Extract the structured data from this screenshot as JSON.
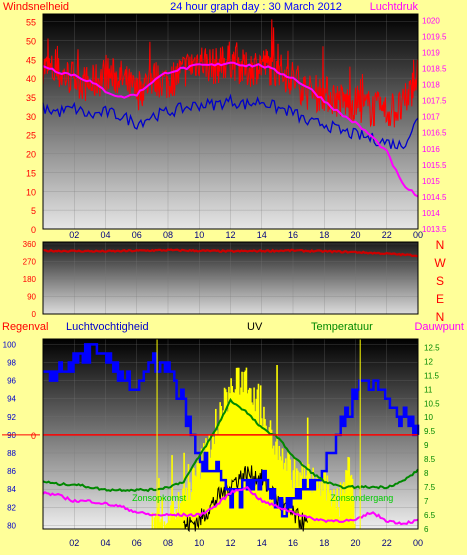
{
  "colors": {
    "background": "#ffff99",
    "wind_gust": "#ff0000",
    "wind_avg": "#0000cc",
    "pressure": "#ff00ff",
    "direction": "#cc0000",
    "humidity": "#0000ff",
    "uv": "#ffff00",
    "temperature": "#008800",
    "dewpoint": "#ff00ff",
    "rain": "#ff0000",
    "solar": "#000000"
  },
  "chart_data": [
    {
      "type": "line",
      "title": "24 hour graph day : 30 March 2012",
      "left_label": "Windsnelheid",
      "right_label": "Luchtdruk",
      "x_tick_labels": [
        "02",
        "04",
        "06",
        "08",
        "10",
        "12",
        "14",
        "16",
        "18",
        "20",
        "22",
        "00"
      ],
      "y_left_ticks": [
        "0",
        "5",
        "10",
        "15",
        "20",
        "25",
        "30",
        "35",
        "40",
        "45",
        "50",
        "55"
      ],
      "y_right_ticks": [
        "1013.5",
        "1014",
        "1014.5",
        "1015",
        "1015.5",
        "1016",
        "1016.5",
        "1017",
        "1017.5",
        "1018",
        "1018.5",
        "1019",
        "1019.5",
        "1020"
      ],
      "ylim_left": [
        0,
        57
      ],
      "ylim_right": [
        1013.5,
        1020.2
      ],
      "xlim": [
        0,
        24
      ],
      "x": [
        0,
        1,
        2,
        3,
        4,
        5,
        6,
        7,
        8,
        9,
        10,
        11,
        12,
        13,
        14,
        15,
        16,
        17,
        18,
        19,
        20,
        21,
        22,
        23,
        24
      ],
      "series": [
        {
          "axis": "left",
          "role": "gust",
          "values": [
            43,
            41,
            40,
            38,
            41,
            40,
            36,
            40,
            39,
            42,
            45,
            43,
            45,
            42,
            44,
            42,
            40,
            36,
            36,
            34,
            33,
            32,
            31,
            32,
            41
          ],
          "noise": 5
        },
        {
          "axis": "left",
          "role": "average",
          "values": [
            32,
            31,
            32,
            30,
            31,
            30,
            28,
            30,
            31,
            32,
            33,
            33,
            34,
            33,
            34,
            32,
            31,
            28,
            28,
            26,
            25,
            24,
            23,
            22,
            29
          ],
          "noise": 1.6
        },
        {
          "axis": "right",
          "role": "pressure",
          "values": [
            1018.6,
            1018.4,
            1018.3,
            1018.1,
            1017.8,
            1017.6,
            1017.7,
            1018.1,
            1018.4,
            1018.5,
            1018.6,
            1018.6,
            1018.7,
            1018.6,
            1018.6,
            1018.4,
            1018.2,
            1017.9,
            1017.5,
            1017.1,
            1016.8,
            1016.4,
            1015.9,
            1014.9,
            1014.5
          ],
          "noise": 0.05
        }
      ]
    },
    {
      "type": "line",
      "right_label_letters": [
        "N",
        "W",
        "S",
        "E",
        "N"
      ],
      "y_ticks": [
        "0",
        "90",
        "180",
        "270",
        "360"
      ],
      "ylim": [
        0,
        370
      ],
      "x_tick_labels": [
        "02",
        "04",
        "06",
        "08",
        "10",
        "12",
        "14",
        "16",
        "18",
        "20",
        "22",
        "00"
      ],
      "series": [
        {
          "role": "wind-direction",
          "x": [
            0,
            4,
            8,
            12,
            16,
            20,
            22,
            24
          ],
          "values": [
            325,
            322,
            328,
            322,
            326,
            318,
            310,
            300
          ],
          "noise": 4
        }
      ]
    },
    {
      "type": "line",
      "labels": {
        "rain": "Regenval",
        "humidity": "Luchtvochtigheid",
        "uv": "UV",
        "temperature": "Temperatuur",
        "dewpoint": "Dauwpunt",
        "sunrise": "Zonsopkomst",
        "sunset": "Zonsondergang"
      },
      "rain_value_label": "0",
      "y_left_ticks": [
        "80",
        "82",
        "84",
        "86",
        "88",
        "90",
        "92",
        "94",
        "96",
        "98",
        "100"
      ],
      "y_right_ticks": [
        "6",
        "6.5",
        "7",
        "7.5",
        "8",
        "8.5",
        "9",
        "9.5",
        "10",
        "10.5",
        "11",
        "11.5",
        "12",
        "12.5"
      ],
      "ylim_left": [
        79.6,
        100.6
      ],
      "ylim_right": [
        6,
        12.8
      ],
      "x_tick_labels": [
        "02",
        "04",
        "06",
        "08",
        "10",
        "12",
        "14",
        "16",
        "18",
        "20",
        "22",
        "00"
      ],
      "sunrise_hour": 7.3,
      "sunset_hour": 20.3,
      "series": [
        {
          "axis": "left",
          "role": "humidity",
          "x": [
            0,
            1,
            2,
            3,
            4,
            5,
            6,
            7,
            8,
            9,
            10,
            11,
            12,
            13,
            14,
            15,
            16,
            17,
            18,
            19,
            20,
            21,
            22,
            23,
            24
          ],
          "values": [
            96,
            97,
            98,
            99,
            98,
            97,
            95,
            98,
            97,
            93,
            87,
            86,
            83,
            84,
            85,
            82,
            83,
            85,
            86,
            91,
            95,
            96,
            94,
            92,
            90
          ]
        },
        {
          "axis": "right",
          "role": "temperature",
          "x": [
            0,
            1,
            2,
            3,
            4,
            5,
            6,
            7,
            8,
            9,
            10,
            11,
            12,
            13,
            14,
            15,
            16,
            17,
            18,
            19,
            20,
            21,
            22,
            23,
            24
          ],
          "values": [
            7.7,
            7.6,
            7.6,
            7.5,
            7.4,
            7.4,
            7.4,
            7.4,
            7.5,
            7.7,
            8.6,
            9.5,
            10.6,
            10.2,
            9.6,
            9.3,
            8.6,
            8.1,
            7.7,
            7.5,
            7.5,
            7.5,
            7.5,
            7.7,
            8.1
          ]
        },
        {
          "axis": "right",
          "role": "dewpoint",
          "x": [
            0,
            1,
            2,
            3,
            4,
            5,
            6,
            7,
            8,
            9,
            10,
            11,
            12,
            13,
            14,
            15,
            16,
            17,
            18,
            19,
            20,
            21,
            22,
            23,
            24
          ],
          "values": [
            7.3,
            7.2,
            7.0,
            7.0,
            6.9,
            6.8,
            6.6,
            6.5,
            6.5,
            6.5,
            6.5,
            6.8,
            7.3,
            7.5,
            7.0,
            6.8,
            6.6,
            6.4,
            6.3,
            6.3,
            6.3,
            6.6,
            6.3,
            6.2,
            6.3
          ]
        },
        {
          "axis": "right",
          "role": "uv",
          "x": [
            7,
            8,
            9,
            10,
            11,
            12,
            13,
            14,
            15,
            16,
            17,
            18,
            19,
            19.7,
            20
          ],
          "values": [
            6.2,
            6.5,
            7,
            8.2,
            9.5,
            11,
            11.5,
            10,
            9,
            8,
            7.8,
            7.5,
            7,
            8.5,
            6
          ]
        },
        {
          "axis": "right",
          "role": "solar",
          "x": [
            9,
            10,
            11,
            12,
            13,
            14,
            15,
            16,
            17
          ],
          "values": [
            6.1,
            6.3,
            7,
            7.6,
            8.0,
            7.8,
            7.0,
            6.5,
            6.1
          ]
        }
      ],
      "rain_line_value": 90
    }
  ]
}
